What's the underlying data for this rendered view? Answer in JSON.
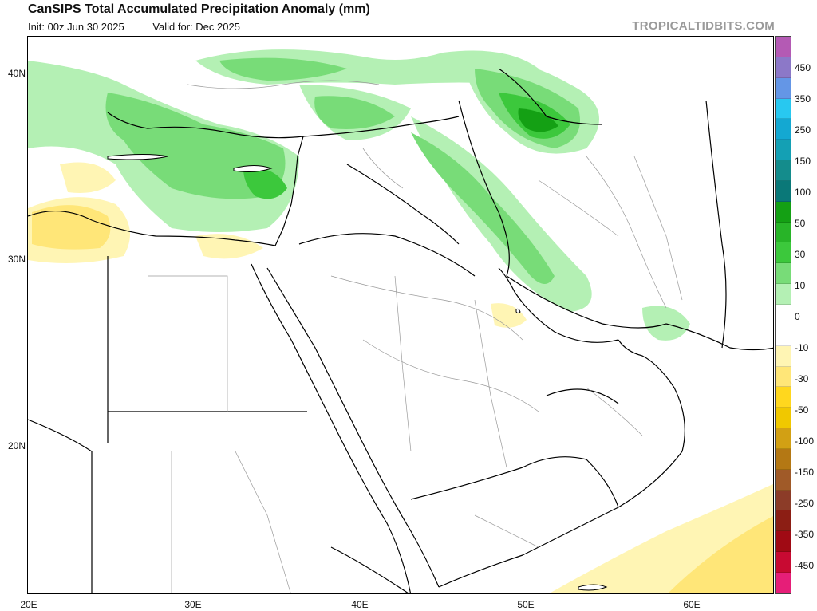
{
  "header": {
    "title": "CanSIPS Total Accumulated Precipitation Anomaly (mm)",
    "init": "Init: 00z Jun 30 2025",
    "valid": "Valid for: Dec 2025",
    "watermark": "TROPICALTIDBITS.COM"
  },
  "map": {
    "projection": "cylindrical",
    "lon_range": [
      20,
      65
    ],
    "lat_range": [
      12,
      42
    ],
    "lat_labels": [
      "40N",
      "30N",
      "20N"
    ],
    "lon_labels": [
      "20E",
      "30E",
      "40E",
      "50E",
      "60E"
    ],
    "colors": {
      "land": "#ffffff",
      "border": "#000000",
      "sub_border": "#9a9a9a",
      "wet_light": "#b4f0b4",
      "wet_mid": "#78dc78",
      "wet_strong": "#3cc83c",
      "wet_heavy": "#14a014",
      "dry_light": "#fff5b4",
      "dry_mid": "#ffe678"
    }
  },
  "colorbar": {
    "labels": [
      "450",
      "350",
      "250",
      "150",
      "100",
      "50",
      "30",
      "10",
      "0",
      "-10",
      "-30",
      "-50",
      "-100",
      "-150",
      "-250",
      "-350",
      "-450"
    ],
    "colors": [
      "#b45ab4",
      "#8c78c8",
      "#6496e6",
      "#28c8f0",
      "#14a8d2",
      "#14a0b4",
      "#148c8c",
      "#0a7878",
      "#14a014",
      "#28b428",
      "#3cc83c",
      "#78dc78",
      "#b4f0b4",
      "#ffffff",
      "#ffffff",
      "#fff5b4",
      "#ffe678",
      "#ffd71e",
      "#f0c800",
      "#d2a014",
      "#b47814",
      "#a05a28",
      "#8c3c28",
      "#8c1e14",
      "#a00a14",
      "#c80a32",
      "#e61e78"
    ]
  }
}
